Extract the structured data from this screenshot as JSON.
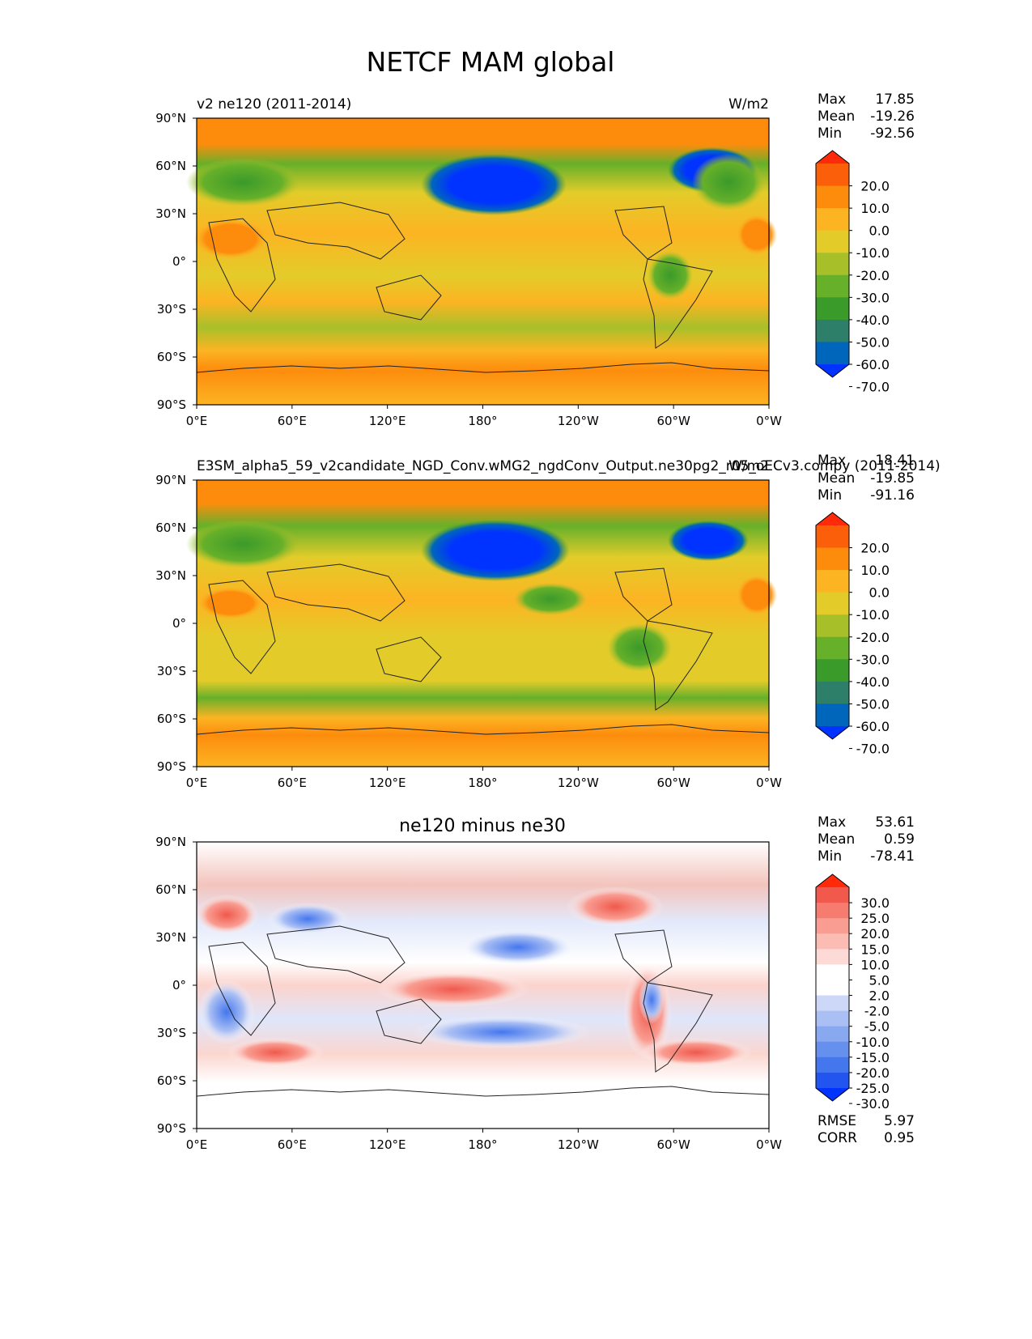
{
  "figure": {
    "title": "NETCF MAM global"
  },
  "panels": [
    {
      "left_title": "v2 ne120 (2011-2014)",
      "center_title": "",
      "right_title": "W/m2",
      "stats": [
        [
          "Max",
          "17.85"
        ],
        [
          "Mean",
          "-19.26"
        ],
        [
          "Min",
          "-92.56"
        ]
      ],
      "colorbar": {
        "colors": [
          "#0033ff",
          "#0066bb",
          "#2e7f6a",
          "#3a9a2a",
          "#66b02a",
          "#a7c02a",
          "#e3cc2a",
          "#fcb423",
          "#fd8c0d",
          "#fb5f0a",
          "#ff2a0a"
        ],
        "labels": [
          "20.0",
          "10.0",
          "0.0",
          "-10.0",
          "-20.0",
          "-30.0",
          "-40.0",
          "-50.0",
          "-60.0",
          "-70.0"
        ]
      },
      "lower_stats": []
    },
    {
      "left_title": "E3SM_alpha5_59_v2candidate_NGD_Conv.wMG2_ngdConv_Output.ne30pg2_r05_oECv3.compy (2011-2014)",
      "center_title": "",
      "right_title": "W/m2",
      "stats": [
        [
          "Max",
          "18.41"
        ],
        [
          "Mean",
          "-19.85"
        ],
        [
          "Min",
          "-91.16"
        ]
      ],
      "colorbar": {
        "colors": [
          "#0033ff",
          "#0066bb",
          "#2e7f6a",
          "#3a9a2a",
          "#66b02a",
          "#a7c02a",
          "#e3cc2a",
          "#fcb423",
          "#fd8c0d",
          "#fb5f0a",
          "#ff2a0a"
        ],
        "labels": [
          "20.0",
          "10.0",
          "0.0",
          "-10.0",
          "-20.0",
          "-30.0",
          "-40.0",
          "-50.0",
          "-60.0",
          "-70.0"
        ]
      },
      "lower_stats": []
    },
    {
      "left_title": "",
      "center_title": "ne120 minus ne30",
      "right_title": "",
      "stats": [
        [
          "Max",
          "53.61"
        ],
        [
          "Mean",
          "0.59"
        ],
        [
          "Min",
          "-78.41"
        ]
      ],
      "colorbar": {
        "colors": [
          "#0033ff",
          "#2255f0",
          "#4477ee",
          "#6690ee",
          "#88a8f0",
          "#aabff4",
          "#cdd8f8",
          "#ffffff",
          "#ffffff",
          "#fddad6",
          "#fbbcb4",
          "#f99d92",
          "#f67c70",
          "#f0594c",
          "#ff2a0a"
        ],
        "labels": [
          "30.0",
          "25.0",
          "20.0",
          "15.0",
          "10.0",
          "5.0",
          "2.0",
          "-2.0",
          "-5.0",
          "-10.0",
          "-15.0",
          "-20.0",
          "-25.0",
          "-30.0"
        ]
      },
      "lower_stats": [
        [
          "RMSE",
          "5.97"
        ],
        [
          "CORR",
          "0.95"
        ]
      ]
    }
  ],
  "axes": {
    "x_ticks": [
      "0°E",
      "60°E",
      "120°E",
      "180°",
      "120°W",
      "60°W",
      "0°W"
    ],
    "y_ticks": [
      "90°N",
      "60°N",
      "30°N",
      "0°",
      "30°S",
      "60°S",
      "90°S"
    ]
  },
  "chart_data": [
    {
      "type": "heatmap",
      "title": "v2 ne120 (2011-2014)",
      "units": "W/m2",
      "x": [
        0,
        60,
        120,
        180,
        240,
        300,
        360
      ],
      "y": [
        90,
        60,
        30,
        0,
        -30,
        -60,
        -90
      ],
      "xlim": [
        0,
        360
      ],
      "ylim": [
        -90,
        90
      ],
      "levels": [
        -70,
        -60,
        -50,
        -40,
        -30,
        -20,
        -10,
        0,
        10,
        20
      ],
      "stats": {
        "max": 17.85,
        "mean": -19.26,
        "min": -92.56
      }
    },
    {
      "type": "heatmap",
      "title": "E3SM_alpha5_59_v2candidate_NGD_Conv.wMG2_ngdConv_Output.ne30pg2_r05_oECv3.compy (2011-2014)",
      "units": "W/m2",
      "x": [
        0,
        60,
        120,
        180,
        240,
        300,
        360
      ],
      "y": [
        90,
        60,
        30,
        0,
        -30,
        -60,
        -90
      ],
      "xlim": [
        0,
        360
      ],
      "ylim": [
        -90,
        90
      ],
      "levels": [
        -70,
        -60,
        -50,
        -40,
        -30,
        -20,
        -10,
        0,
        10,
        20
      ],
      "stats": {
        "max": 18.41,
        "mean": -19.85,
        "min": -91.16
      }
    },
    {
      "type": "heatmap",
      "title": "ne120 minus ne30",
      "x": [
        0,
        60,
        120,
        180,
        240,
        300,
        360
      ],
      "y": [
        90,
        60,
        30,
        0,
        -30,
        -60,
        -90
      ],
      "xlim": [
        0,
        360
      ],
      "ylim": [
        -90,
        90
      ],
      "levels": [
        -30,
        -25,
        -20,
        -15,
        -10,
        -5,
        -2,
        2,
        5,
        10,
        15,
        20,
        25,
        30
      ],
      "stats": {
        "max": 53.61,
        "mean": 0.59,
        "min": -78.41,
        "rmse": 5.97,
        "corr": 0.95
      }
    }
  ]
}
